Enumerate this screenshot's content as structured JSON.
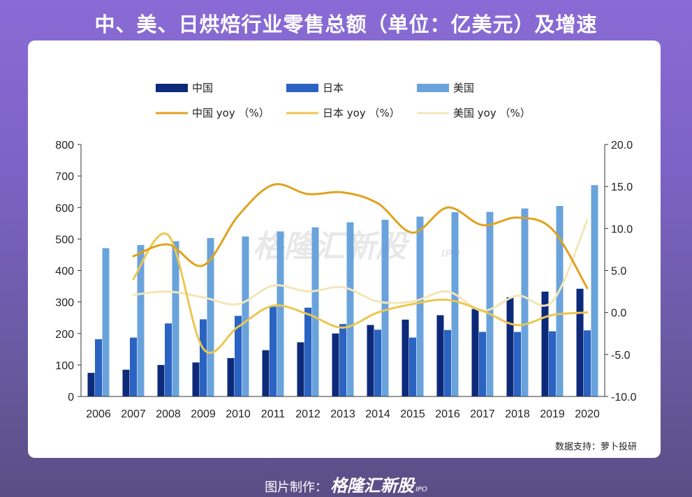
{
  "title": "中、美、日烘焙行业零售总额（单位：亿美元）及增速",
  "source": "数据支持：萝卜投研",
  "footer": {
    "label": "图片制作：",
    "brand": "格隆汇新股",
    "ipo": "IPO"
  },
  "watermark": {
    "brand": "格隆汇新股",
    "ipo": "IPO"
  },
  "colors": {
    "china_bar": "#0d2a7a",
    "japan_bar": "#2b63c2",
    "us_bar": "#6aa3dc",
    "china_yoy": "#e0a21f",
    "japan_yoy": "#ecc650",
    "us_yoy": "#f3e6b8"
  },
  "chart_data": {
    "type": "bar+line",
    "categories": [
      "2006",
      "2007",
      "2008",
      "2009",
      "2010",
      "2011",
      "2012",
      "2013",
      "2014",
      "2015",
      "2016",
      "2017",
      "2018",
      "2019",
      "2020"
    ],
    "series": [
      {
        "name": "中国",
        "type": "bar",
        "axis": "left",
        "values": [
          75,
          85,
          100,
          108,
          122,
          147,
          172,
          200,
          227,
          244,
          258,
          278,
          315,
          333,
          342
        ]
      },
      {
        "name": "日本",
        "type": "bar",
        "axis": "left",
        "values": [
          182,
          187,
          232,
          245,
          256,
          285,
          282,
          230,
          212,
          187,
          211,
          205,
          205,
          207,
          210
        ]
      },
      {
        "name": "美国",
        "type": "bar",
        "axis": "left",
        "values": [
          471,
          481,
          493,
          503,
          508,
          524,
          537,
          553,
          561,
          571,
          585,
          586,
          597,
          605,
          671
        ]
      },
      {
        "name": "中国 yoy （%）",
        "type": "line",
        "axis": "right",
        "x": [
          "2007",
          "2008",
          "2009",
          "2010",
          "2011",
          "2012",
          "2013",
          "2014",
          "2015",
          "2016",
          "2017",
          "2018",
          "2019",
          "2020"
        ],
        "values": [
          6.7,
          8.1,
          5.6,
          11.5,
          15.2,
          14.1,
          14.3,
          13.0,
          9.5,
          12.5,
          10.4,
          11.3,
          9.9,
          2.9
        ]
      },
      {
        "name": "日本 yoy （%）",
        "type": "line",
        "axis": "right",
        "x": [
          "2007",
          "2008",
          "2009",
          "2010",
          "2011",
          "2012",
          "2013",
          "2014",
          "2015",
          "2016",
          "2017",
          "2018",
          "2019",
          "2020"
        ],
        "values": [
          4.0,
          9.2,
          -4.3,
          -1.7,
          0.8,
          -0.2,
          -1.8,
          0.0,
          1.0,
          1.5,
          0.2,
          -1.5,
          -0.3,
          0.0
        ]
      },
      {
        "name": "美国 yoy （%）",
        "type": "line",
        "axis": "right",
        "x": [
          "2007",
          "2008",
          "2009",
          "2010",
          "2011",
          "2012",
          "2013",
          "2014",
          "2015",
          "2016",
          "2017",
          "2018",
          "2019",
          "2020"
        ],
        "values": [
          2.1,
          2.5,
          1.8,
          1.0,
          3.2,
          2.5,
          3.0,
          1.3,
          1.3,
          2.5,
          0.2,
          2.0,
          1.3,
          11.0
        ]
      }
    ],
    "y_left": {
      "min": 0,
      "max": 800,
      "ticks": [
        "0",
        "100",
        "200",
        "300",
        "400",
        "500",
        "600",
        "700",
        "800"
      ]
    },
    "y_right": {
      "min": -10,
      "max": 20,
      "ticks": [
        "-10.0",
        "-5.0",
        "0.0",
        "5.0",
        "10.0",
        "15.0",
        "20.0"
      ]
    },
    "grid": false,
    "legend_position": "top"
  }
}
